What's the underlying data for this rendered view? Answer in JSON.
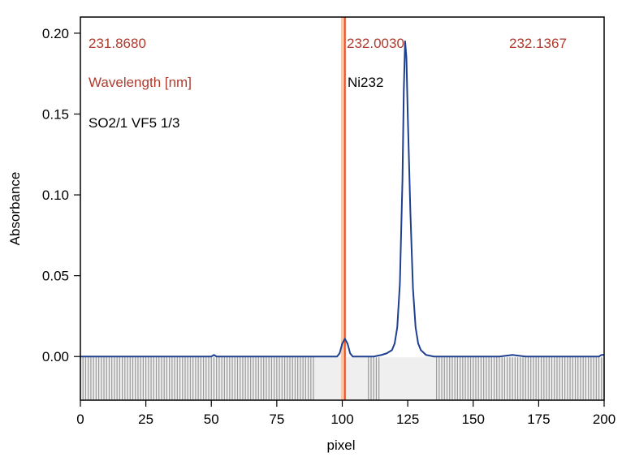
{
  "chart_data": {
    "type": "line",
    "xlabel": "pixel",
    "ylabel": "Absorbance",
    "xlim": [
      0,
      200
    ],
    "ylim": [
      -0.027,
      0.21
    ],
    "x_ticks": [
      0,
      25,
      50,
      75,
      100,
      125,
      150,
      175,
      200
    ],
    "y_ticks": [
      0.0,
      0.05,
      0.1,
      0.15,
      0.2
    ],
    "x_tick_labels": [
      "0",
      "25",
      "50",
      "75",
      "100",
      "125",
      "150",
      "175",
      "200"
    ],
    "y_tick_labels": [
      "0.00",
      "0.05",
      "0.10",
      "0.15",
      "0.20"
    ],
    "annotations": {
      "wl_left": "231.8680",
      "wl_center": "232.0030",
      "wl_right": "232.1367",
      "wl_label": "Wavelength [nm]",
      "sample": "SO2/1 VF5 1/3",
      "element": "Ni232"
    },
    "colors": {
      "line": "#1f3f8f",
      "marker": "#e8502a",
      "marker_band": "#f7c9a8",
      "annotation": "#b03a2e",
      "stripe": "#9a9a9a"
    },
    "marker_x": 101,
    "marker_band": [
      99.5,
      101.5
    ],
    "grey_blocks": [
      [
        0,
        89
      ],
      [
        110,
        114
      ],
      [
        136,
        200
      ]
    ],
    "excluded_region": [
      0,
      200
    ],
    "series": [
      {
        "points": [
          [
            0,
            0.0
          ],
          [
            15,
            0.0
          ],
          [
            40,
            0.0
          ],
          [
            45,
            0.0
          ],
          [
            50,
            0.0
          ],
          [
            51,
            0.001
          ],
          [
            52,
            0.0
          ],
          [
            60,
            0.0
          ],
          [
            70,
            0.0
          ],
          [
            80,
            0.0
          ],
          [
            90,
            0.0
          ],
          [
            95,
            0.0
          ],
          [
            97,
            0.0
          ],
          [
            98,
            0.0
          ],
          [
            99,
            0.002
          ],
          [
            100,
            0.008
          ],
          [
            101,
            0.011
          ],
          [
            102,
            0.008
          ],
          [
            103,
            0.002
          ],
          [
            104,
            0.0
          ],
          [
            105,
            0.0
          ],
          [
            108,
            0.0
          ],
          [
            112,
            0.0
          ],
          [
            115,
            0.001
          ],
          [
            117,
            0.002
          ],
          [
            119,
            0.004
          ],
          [
            120,
            0.008
          ],
          [
            121,
            0.018
          ],
          [
            122,
            0.045
          ],
          [
            123,
            0.11
          ],
          [
            123.5,
            0.165
          ],
          [
            124,
            0.195
          ],
          [
            124.5,
            0.185
          ],
          [
            125,
            0.15
          ],
          [
            126,
            0.09
          ],
          [
            127,
            0.042
          ],
          [
            128,
            0.018
          ],
          [
            129,
            0.008
          ],
          [
            130,
            0.004
          ],
          [
            132,
            0.001
          ],
          [
            135,
            0.0
          ],
          [
            140,
            0.0
          ],
          [
            150,
            0.0
          ],
          [
            160,
            0.0
          ],
          [
            165,
            0.001
          ],
          [
            170,
            0.0
          ],
          [
            180,
            0.0
          ],
          [
            190,
            0.0
          ],
          [
            195,
            0.0
          ],
          [
            198,
            0.0
          ],
          [
            199,
            0.001
          ],
          [
            200,
            0.001
          ]
        ]
      }
    ]
  }
}
